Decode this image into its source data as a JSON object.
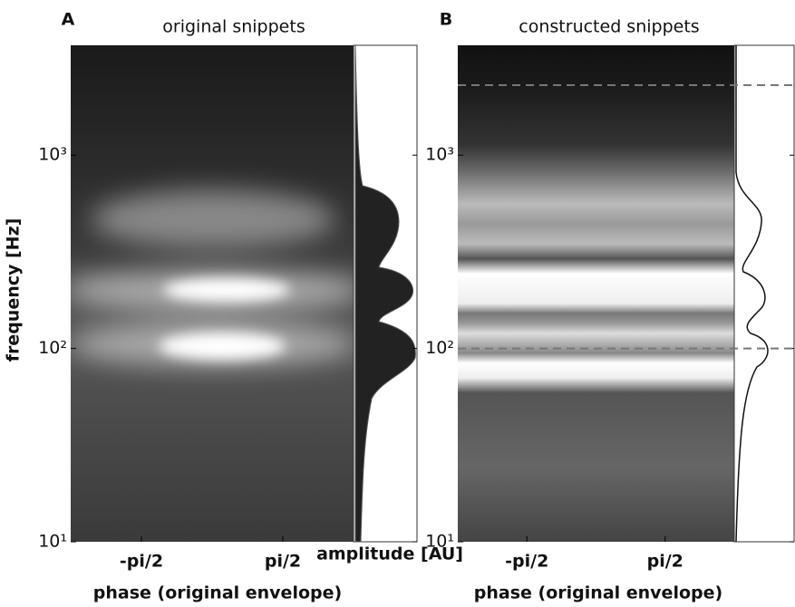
{
  "chart_data": [
    {
      "type": "heatmap",
      "panel_label": "A",
      "title": "original snippets",
      "xlabel": "phase (original envelope)",
      "ylabel": "frequency [Hz]",
      "side_xlabel": "amplitude [AU]",
      "xlim": [
        -3.1416,
        3.1416
      ],
      "xticks": [
        {
          "value": -1.5708,
          "label": "-pi/2"
        },
        {
          "value": 1.5708,
          "label": "pi/2"
        }
      ],
      "ylim": [
        10,
        3700
      ],
      "log_y": true,
      "yticks": [
        {
          "value": 10,
          "label": "10¹"
        },
        {
          "value": 100,
          "label": "10²"
        },
        {
          "value": 1000,
          "label": "10³"
        }
      ]
    },
    {
      "type": "heatmap",
      "panel_label": "B",
      "title": "constructed snippets",
      "xlabel": "phase (original envelope)",
      "xlim": [
        -3.1416,
        3.1416
      ],
      "xticks": [
        {
          "value": -1.5708,
          "label": "-pi/2"
        },
        {
          "value": 1.5708,
          "label": "pi/2"
        }
      ],
      "ylim": [
        10,
        3700
      ],
      "log_y": true,
      "yticks": [
        {
          "value": 10,
          "label": "10¹"
        },
        {
          "value": 100,
          "label": "10²"
        },
        {
          "value": 1000,
          "label": "10³"
        }
      ],
      "hlines": [
        100,
        2300
      ]
    }
  ]
}
